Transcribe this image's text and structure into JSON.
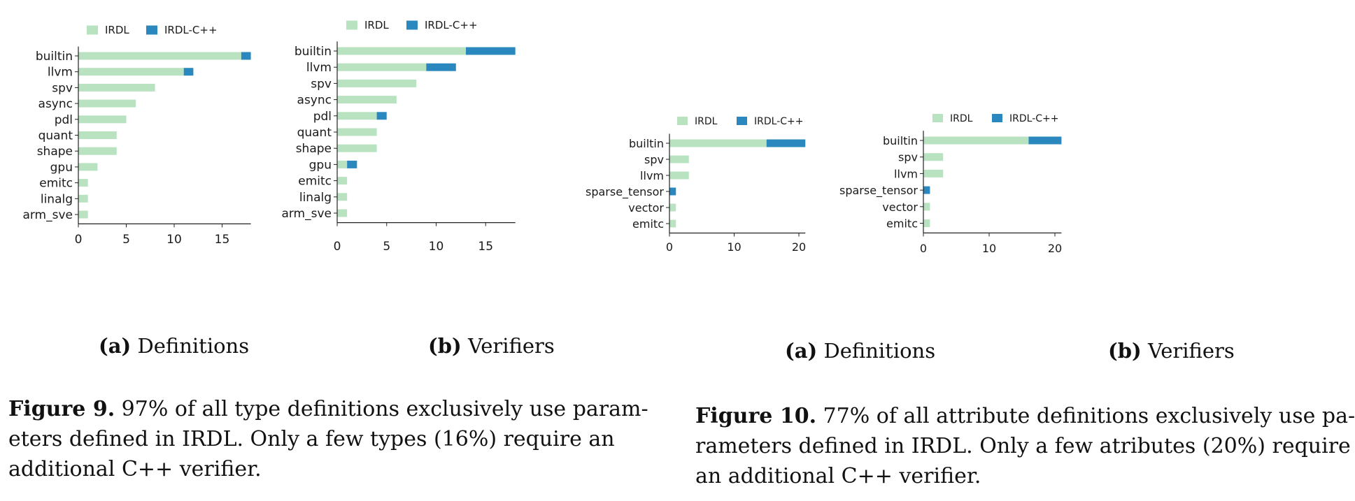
{
  "colors": {
    "irdl": "#b9e3c0",
    "cpp": "#2b88bf",
    "axis": "#222222"
  },
  "legend": {
    "irdl": "IRDL",
    "cpp": "IRDL-C++"
  },
  "chart_data": [
    {
      "type": "bar",
      "orientation": "horizontal",
      "stacked": true,
      "caption_label": "(a)",
      "caption_text": "Definitions",
      "categories": [
        "builtin",
        "llvm",
        "spv",
        "async",
        "pdl",
        "quant",
        "shape",
        "gpu",
        "emitc",
        "linalg",
        "arm_sve"
      ],
      "series": [
        {
          "name": "IRDL",
          "values": [
            17,
            11,
            8,
            6,
            5,
            4,
            4,
            2,
            1,
            1,
            1
          ]
        },
        {
          "name": "IRDL-C++",
          "values": [
            1,
            1,
            0,
            0,
            0,
            0,
            0,
            0,
            0,
            0,
            0
          ]
        }
      ],
      "xlim": [
        0,
        18
      ],
      "xticks": [
        "0",
        "5",
        "10",
        "15"
      ],
      "legend_position": "top"
    },
    {
      "type": "bar",
      "orientation": "horizontal",
      "stacked": true,
      "caption_label": "(b)",
      "caption_text": "Verifiers",
      "categories": [
        "builtin",
        "llvm",
        "spv",
        "async",
        "pdl",
        "quant",
        "shape",
        "gpu",
        "emitc",
        "linalg",
        "arm_sve"
      ],
      "series": [
        {
          "name": "IRDL",
          "values": [
            13,
            9,
            8,
            6,
            4,
            4,
            4,
            1,
            1,
            1,
            1
          ]
        },
        {
          "name": "IRDL-C++",
          "values": [
            5,
            3,
            0,
            0,
            1,
            0,
            0,
            1,
            0,
            0,
            0
          ]
        }
      ],
      "xlim": [
        0,
        18
      ],
      "xticks": [
        "0",
        "5",
        "10",
        "15"
      ],
      "legend_position": "top"
    },
    {
      "type": "bar",
      "orientation": "horizontal",
      "stacked": true,
      "caption_label": "(a)",
      "caption_text": "Definitions",
      "categories": [
        "builtin",
        "spv",
        "llvm",
        "sparse_tensor",
        "vector",
        "emitc"
      ],
      "series": [
        {
          "name": "IRDL",
          "values": [
            15,
            3,
            3,
            0,
            1,
            1
          ]
        },
        {
          "name": "IRDL-C++",
          "values": [
            6,
            0,
            0,
            1,
            0,
            0
          ]
        }
      ],
      "xlim": [
        0,
        21
      ],
      "xticks": [
        "0",
        "10",
        "20"
      ],
      "legend_position": "top"
    },
    {
      "type": "bar",
      "orientation": "horizontal",
      "stacked": true,
      "caption_label": "(b)",
      "caption_text": "Verifiers",
      "categories": [
        "builtin",
        "spv",
        "llvm",
        "sparse_tensor",
        "vector",
        "emitc"
      ],
      "series": [
        {
          "name": "IRDL",
          "values": [
            16,
            3,
            3,
            0,
            1,
            1
          ]
        },
        {
          "name": "IRDL-C++",
          "values": [
            5,
            0,
            0,
            1,
            0,
            0
          ]
        }
      ],
      "xlim": [
        0,
        21
      ],
      "xticks": [
        "0",
        "10",
        "20"
      ],
      "legend_position": "top"
    }
  ],
  "figure9": {
    "label": "Figure 9.",
    "lines": [
      " 97% of all type definitions exclusively use param-",
      "eters defined in IRDL. Only a few types (16%) require an",
      "additional C++ verifier."
    ]
  },
  "figure10": {
    "label": "Figure 10.",
    "lines": [
      " 77% of all attribute definitions exclusively use pa-",
      "rameters defined in IRDL. Only a few atributes (20%) require",
      "an additional C++ verifier."
    ]
  }
}
